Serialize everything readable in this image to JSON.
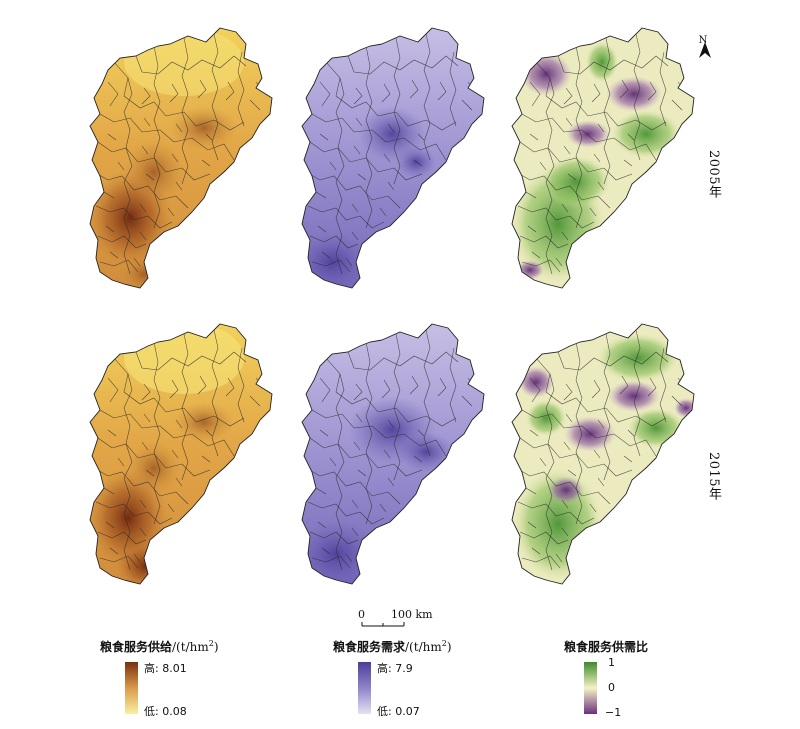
{
  "rows": [
    {
      "year_label": "2005年"
    },
    {
      "year_label": "2015年"
    }
  ],
  "north_arrow": {
    "letter": "N"
  },
  "scale_bar": {
    "zero": "0",
    "distance": "100 km"
  },
  "legends": [
    {
      "title": "粮食服务供给",
      "unit_main": "/(t/hm",
      "unit_sup": "2",
      "unit_end": ")",
      "high_label": "高: 8.01",
      "low_label": "低: 0.08",
      "color_high": "#7a2e12",
      "color_mid": "#d99a4a",
      "color_low": "#f8f0a6"
    },
    {
      "title": "粮食服务需求",
      "unit_main": "/(t/hm",
      "unit_sup": "2",
      "unit_end": ")",
      "high_label": "高: 7.9",
      "low_label": "低: 0.07",
      "color_high": "#4b3e9a",
      "color_mid": "#8f84c8",
      "color_low": "#e6e1f4"
    },
    {
      "title": "粮食服务供需比",
      "unit_main": "",
      "unit_sup": "",
      "unit_end": "",
      "high_label": "1",
      "mid_label": "0",
      "low_label": "−1",
      "color_high": "#3e8a2c",
      "color_mid": "#f5f2c4",
      "color_low": "#6b2f7e"
    }
  ]
}
